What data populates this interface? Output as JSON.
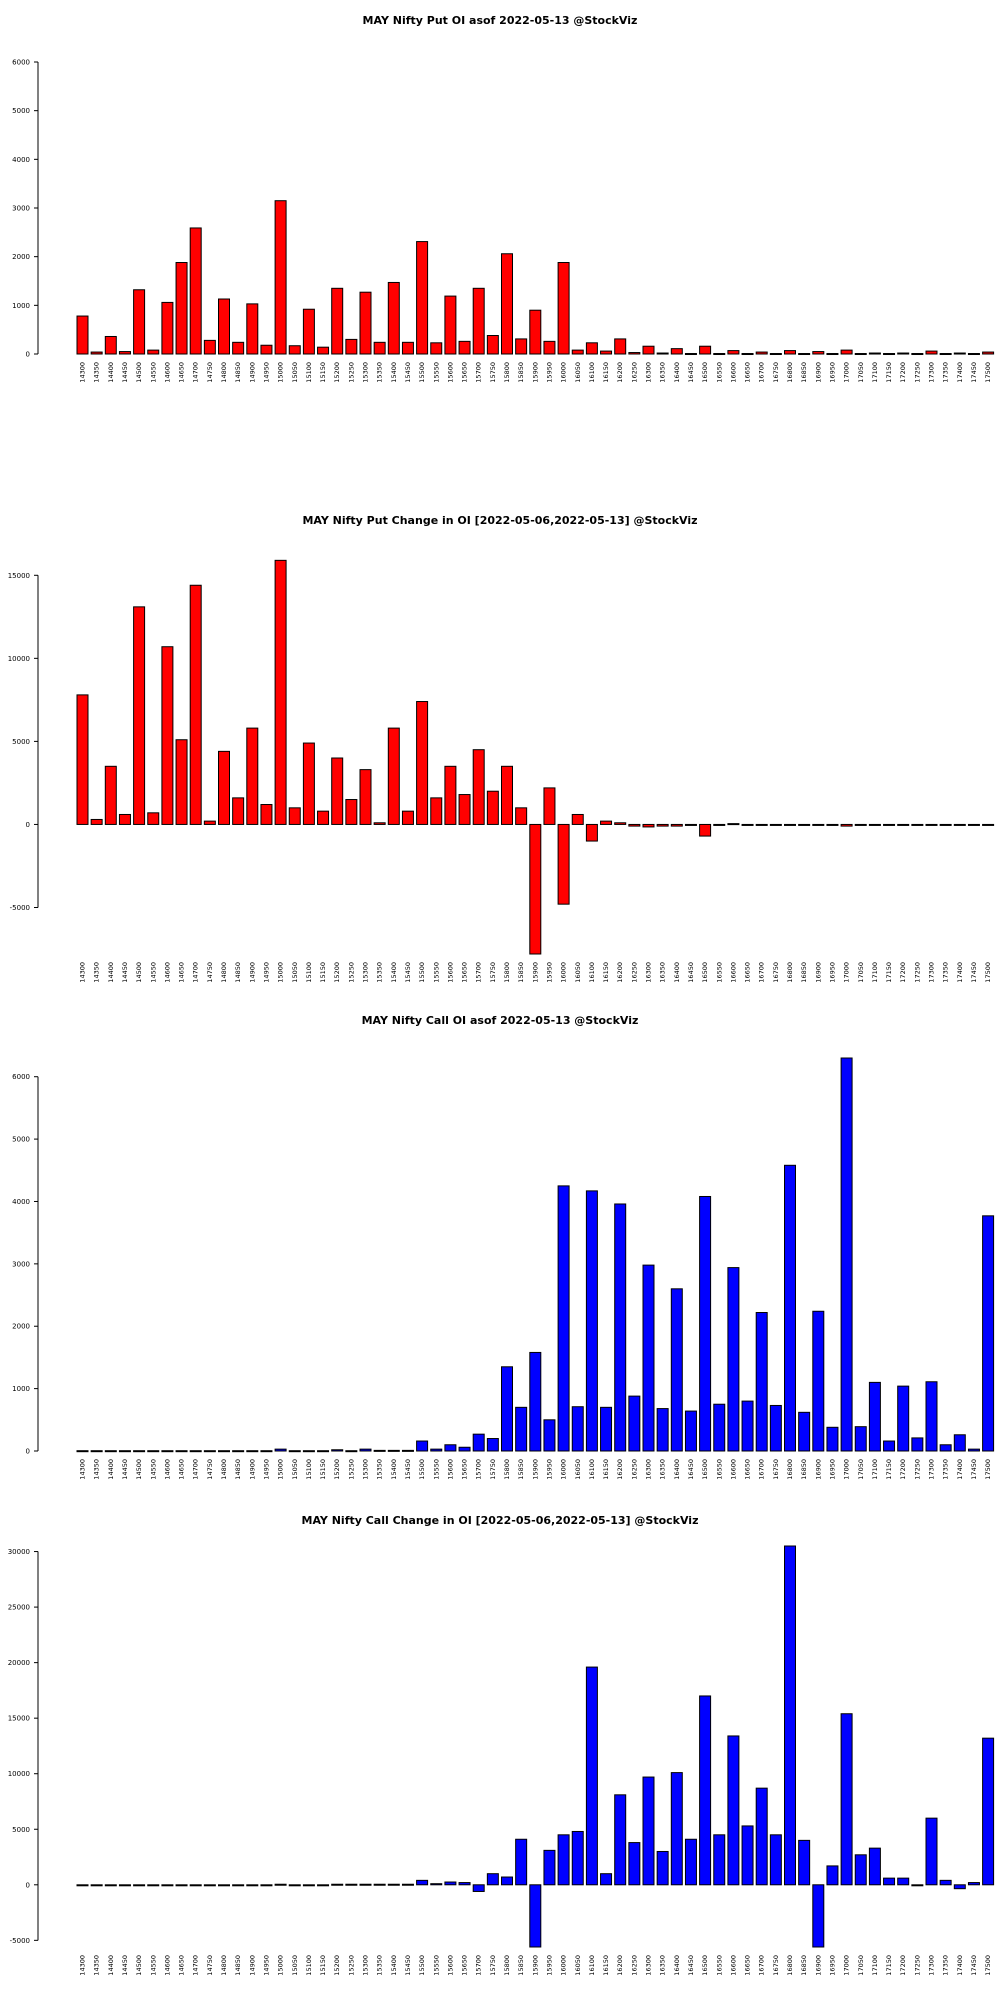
{
  "chart_data": [
    {
      "type": "bar",
      "title": "MAY Nifty Put OI asof 2022-05-13 @StockViz",
      "color": "#ff0000",
      "xlabel": "",
      "ylabel": "",
      "ylim": [
        0,
        6000
      ],
      "yticks": [
        0,
        1000,
        2000,
        3000,
        4000,
        5000,
        6000
      ],
      "categories": [
        "14300",
        "14350",
        "14400",
        "14450",
        "14500",
        "14550",
        "14600",
        "14650",
        "14700",
        "14750",
        "14800",
        "14850",
        "14900",
        "14950",
        "15000",
        "15050",
        "15100",
        "15150",
        "15200",
        "15250",
        "15300",
        "15350",
        "15400",
        "15450",
        "15500",
        "15550",
        "15600",
        "15650",
        "15700",
        "15750",
        "15800",
        "15850",
        "15900",
        "15950",
        "16000",
        "16050",
        "16100",
        "16150",
        "16200",
        "16250",
        "16300",
        "16350",
        "16400",
        "16450",
        "16500",
        "16550",
        "16600",
        "16650",
        "16700",
        "16750",
        "16800",
        "16850",
        "16900",
        "16950",
        "17000",
        "17050",
        "17100",
        "17150",
        "17200",
        "17250",
        "17300",
        "17350",
        "17400",
        "17450",
        "17500"
      ],
      "values": [
        780,
        40,
        360,
        50,
        1320,
        80,
        1060,
        1880,
        2590,
        280,
        1130,
        240,
        1030,
        180,
        3150,
        170,
        920,
        140,
        1350,
        300,
        1270,
        240,
        1470,
        240,
        2310,
        230,
        1190,
        260,
        1350,
        380,
        2060,
        310,
        900,
        260,
        1880,
        80,
        230,
        60,
        310,
        30,
        160,
        20,
        110,
        10,
        160,
        10,
        70,
        10,
        40,
        10,
        70,
        10,
        50,
        10,
        80,
        10,
        20,
        10,
        20,
        10,
        60,
        10,
        20,
        10,
        40
      ]
    },
    {
      "type": "bar",
      "title": "MAY Nifty Put Change in OI [2022-05-06,2022-05-13] @StockViz",
      "color": "#ff0000",
      "xlabel": "",
      "ylabel": "",
      "ylim": [
        -7800,
        15800
      ],
      "yticks": [
        -5000,
        0,
        5000,
        10000,
        15000
      ],
      "categories": [
        "14300",
        "14350",
        "14400",
        "14450",
        "14500",
        "14550",
        "14600",
        "14650",
        "14700",
        "14750",
        "14800",
        "14850",
        "14900",
        "14950",
        "15000",
        "15050",
        "15100",
        "15150",
        "15200",
        "15250",
        "15300",
        "15350",
        "15400",
        "15450",
        "15500",
        "15550",
        "15600",
        "15650",
        "15700",
        "15750",
        "15800",
        "15850",
        "15900",
        "15950",
        "16000",
        "16050",
        "16100",
        "16150",
        "16200",
        "16250",
        "16300",
        "16350",
        "16400",
        "16450",
        "16500",
        "16550",
        "16600",
        "16650",
        "16700",
        "16750",
        "16800",
        "16850",
        "16900",
        "16950",
        "17000",
        "17050",
        "17100",
        "17150",
        "17200",
        "17250",
        "17300",
        "17350",
        "17400",
        "17450",
        "17500"
      ],
      "values": [
        7800,
        300,
        3500,
        600,
        13100,
        700,
        10700,
        5100,
        14400,
        200,
        4400,
        1600,
        5800,
        1200,
        15900,
        1000,
        4900,
        800,
        4000,
        1500,
        3300,
        100,
        5800,
        800,
        7400,
        1600,
        3500,
        1800,
        4500,
        2000,
        3500,
        1000,
        -7800,
        2200,
        -4800,
        600,
        -1000,
        200,
        100,
        -100,
        -150,
        -100,
        -100,
        -50,
        -700,
        -30,
        50,
        -30,
        -30,
        -30,
        -30,
        -30,
        -30,
        -30,
        -100,
        -30,
        -30,
        -30,
        -30,
        -30,
        -30,
        -30,
        -30,
        -30,
        -30
      ]
    },
    {
      "type": "bar",
      "title": "MAY Nifty Call OI asof 2022-05-13 @StockViz",
      "color": "#0000ff",
      "xlabel": "",
      "ylabel": "",
      "ylim": [
        0,
        6300
      ],
      "yticks": [
        0,
        1000,
        2000,
        3000,
        4000,
        5000,
        6000
      ],
      "categories": [
        "14300",
        "14350",
        "14400",
        "14450",
        "14500",
        "14550",
        "14600",
        "14650",
        "14700",
        "14750",
        "14800",
        "14850",
        "14900",
        "14950",
        "15000",
        "15050",
        "15100",
        "15150",
        "15200",
        "15250",
        "15300",
        "15350",
        "15400",
        "15450",
        "15500",
        "15550",
        "15600",
        "15650",
        "15700",
        "15750",
        "15800",
        "15850",
        "15900",
        "15950",
        "16000",
        "16050",
        "16100",
        "16150",
        "16200",
        "16250",
        "16300",
        "16350",
        "16400",
        "16450",
        "16500",
        "16550",
        "16600",
        "16650",
        "16700",
        "16750",
        "16800",
        "16850",
        "16900",
        "16950",
        "17000",
        "17050",
        "17100",
        "17150",
        "17200",
        "17250",
        "17300",
        "17350",
        "17400",
        "17450",
        "17500"
      ],
      "values": [
        5,
        5,
        5,
        5,
        5,
        5,
        5,
        5,
        5,
        5,
        5,
        5,
        5,
        5,
        30,
        5,
        5,
        5,
        20,
        5,
        30,
        10,
        10,
        10,
        160,
        30,
        100,
        60,
        270,
        200,
        1350,
        700,
        1580,
        500,
        4250,
        710,
        4170,
        700,
        3960,
        880,
        2980,
        680,
        2600,
        640,
        4080,
        750,
        2940,
        800,
        2220,
        730,
        4580,
        620,
        2240,
        380,
        6300,
        390,
        1100,
        160,
        1040,
        210,
        1110,
        100,
        260,
        30,
        3770
      ]
    },
    {
      "type": "bar",
      "title": "MAY Nifty Call Change in OI [2022-05-06,2022-05-13] @StockViz",
      "color": "#0000ff",
      "xlabel": "",
      "ylabel": "",
      "ylim": [
        -5600,
        30500
      ],
      "yticks": [
        -5000,
        0,
        5000,
        10000,
        15000,
        20000,
        25000,
        30000
      ],
      "categories": [
        "14300",
        "14350",
        "14400",
        "14450",
        "14500",
        "14550",
        "14600",
        "14650",
        "14700",
        "14750",
        "14800",
        "14850",
        "14900",
        "14950",
        "15000",
        "15050",
        "15100",
        "15150",
        "15200",
        "15250",
        "15300",
        "15350",
        "15400",
        "15450",
        "15500",
        "15550",
        "15600",
        "15650",
        "15700",
        "15750",
        "15800",
        "15850",
        "15900",
        "15950",
        "16000",
        "16050",
        "16100",
        "16150",
        "16200",
        "16250",
        "16300",
        "16350",
        "16400",
        "16450",
        "16500",
        "16550",
        "16600",
        "16650",
        "16700",
        "16750",
        "16800",
        "16850",
        "16900",
        "16950",
        "17000",
        "17050",
        "17100",
        "17150",
        "17200",
        "17250",
        "17300",
        "17350",
        "17400",
        "17450",
        "17500"
      ],
      "values": [
        -30,
        -30,
        -30,
        -30,
        -30,
        -30,
        -30,
        -30,
        -30,
        -30,
        -30,
        -30,
        -30,
        -30,
        50,
        -30,
        -30,
        -30,
        50,
        50,
        50,
        50,
        50,
        50,
        400,
        100,
        250,
        200,
        -600,
        1000,
        700,
        4100,
        -5600,
        3100,
        4500,
        4800,
        19600,
        1000,
        8100,
        3800,
        9700,
        3000,
        10100,
        4100,
        17000,
        4500,
        13400,
        5300,
        8700,
        4500,
        30500,
        4000,
        -5600,
        1700,
        15400,
        2700,
        3300,
        600,
        600,
        -50,
        6000,
        400,
        -350,
        200,
        13200
      ]
    }
  ]
}
